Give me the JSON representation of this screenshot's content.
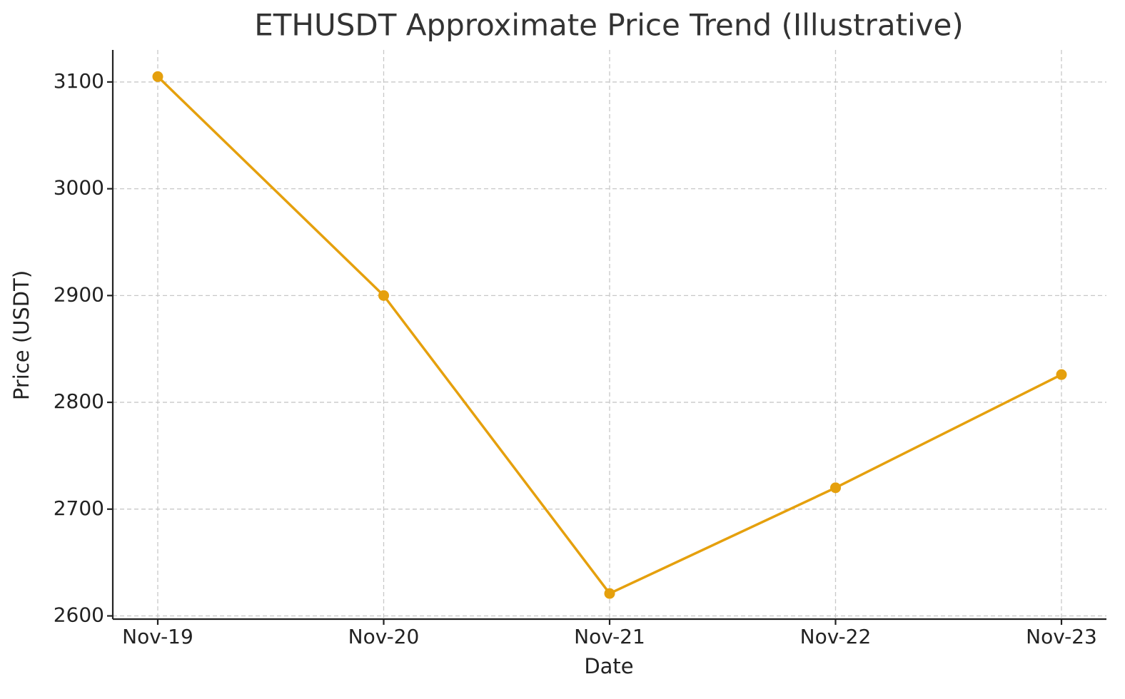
{
  "chart_data": {
    "type": "line",
    "title": "ETHUSDT Approximate Price Trend (Illustrative)",
    "x_label": "Date",
    "y_label": "Price (USDT)",
    "categories": [
      "Nov-19",
      "Nov-20",
      "Nov-21",
      "Nov-22",
      "Nov-23"
    ],
    "series": [
      {
        "color": "#e5a00d",
        "values": [
          3105,
          2900,
          2621,
          2720,
          2826
        ]
      }
    ],
    "ylim": [
      2597,
      3130
    ],
    "yticks": [
      2600,
      2700,
      2800,
      2900,
      3000,
      3100
    ],
    "grid": true,
    "markers": true
  }
}
